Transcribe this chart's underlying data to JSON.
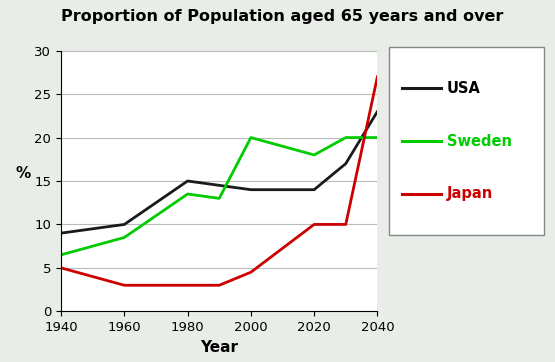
{
  "title": "Proportion of Population aged 65 years and over",
  "xlabel": "Year",
  "ylabel": "%",
  "xlim": [
    1940,
    2040
  ],
  "ylim": [
    0,
    30
  ],
  "xticks": [
    1940,
    1960,
    1980,
    2000,
    2020,
    2040
  ],
  "yticks": [
    0,
    5,
    10,
    15,
    20,
    25,
    30
  ],
  "series": {
    "USA": {
      "x": [
        1940,
        1960,
        1980,
        1990,
        2000,
        2020,
        2030,
        2040
      ],
      "y": [
        9,
        10,
        15,
        14.5,
        14,
        14,
        17,
        23
      ],
      "color": "#1a1a1a",
      "linewidth": 2.0,
      "linestyle": "-"
    },
    "Sweden": {
      "x": [
        1940,
        1960,
        1980,
        1990,
        2000,
        2020,
        2030,
        2040
      ],
      "y": [
        6.5,
        8.5,
        13.5,
        13,
        20,
        18,
        20,
        20
      ],
      "color": "#00cc00",
      "linewidth": 2.0,
      "linestyle": "-"
    },
    "Japan": {
      "x": [
        1940,
        1960,
        1980,
        1990,
        2000,
        2020,
        2030,
        2040
      ],
      "y": [
        5,
        3,
        3,
        3,
        4.5,
        10,
        10,
        27
      ],
      "color": "#cc0000",
      "linewidth": 2.0,
      "linestyle": "-"
    }
  },
  "legend_labels": [
    "USA",
    "Sweden",
    "Japan"
  ],
  "legend_colors": [
    "#1a1a1a",
    "#00cc00",
    "#cc0000"
  ],
  "legend_text_colors": [
    "#000000",
    "#00cc00",
    "#cc0000"
  ],
  "background_color": "#ffffff",
  "outer_background": "#e8ede8",
  "title_fontsize": 11.5,
  "axis_label_fontsize": 11,
  "tick_fontsize": 9.5
}
